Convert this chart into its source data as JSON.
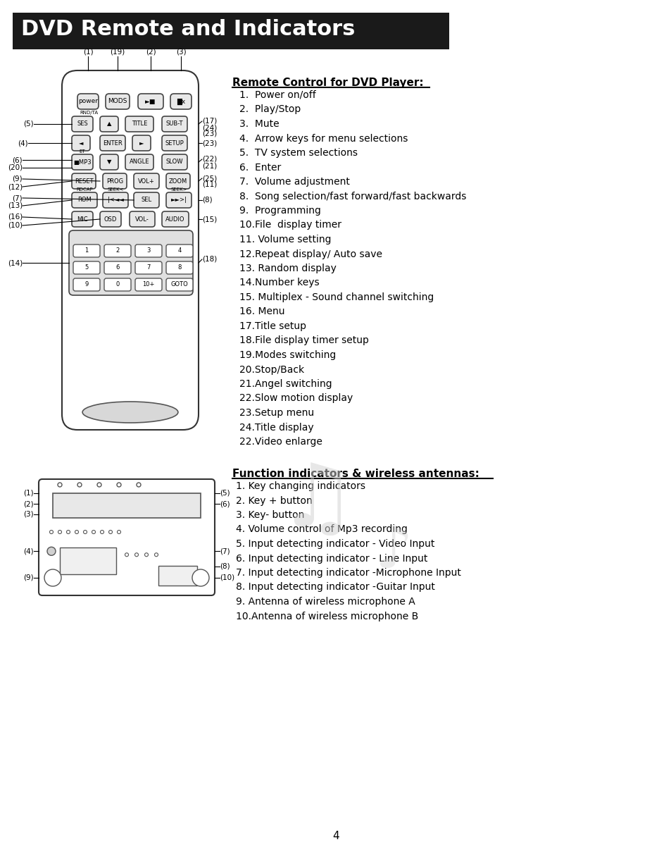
{
  "title": "DVD Remote and Indicators",
  "title_bg": "#1a1a1a",
  "title_color": "#ffffff",
  "title_fontsize": 22,
  "page_number": "4",
  "bg_color": "#ffffff",
  "remote_section_title": "Remote Control for DVD Player:",
  "remote_items": [
    "1.  Power on/off",
    "2.  Play/Stop",
    "3.  Mute",
    "4.  Arrow keys for menu selections",
    "5.  TV system selections",
    "6.  Enter",
    "7.  Volume adjustment",
    "8.  Song selection/fast forward/fast backwards",
    "9.  Programming",
    "10.File  display timer",
    "11. Volume setting",
    "12.Repeat display/ Auto save",
    "13. Random display",
    "14.Number keys",
    "15. Multiplex - Sound channel switching",
    "16. Menu",
    "17.Title setup",
    "18.File display timer setup",
    "19.Modes switching",
    "20.Stop/Back",
    "21.Angel switching",
    "22.Slow motion display",
    "23.Setup menu",
    "24.Title display",
    "22.Video enlarge"
  ],
  "indicator_section_title": "Function indicators & wireless antennas:",
  "indicator_items": [
    "1. Key changing indicators",
    "2. Key + button",
    "3. Key- button",
    "4. Volume control of Mp3 recording",
    "5. Input detecting indicator - Video Input",
    "6. Input detecting indicator - Line Input",
    "7. Input detecting indicator -Microphone Input",
    "8. Input detecting indicator -Guitar Input",
    "9. Antenna of wireless microphone A",
    "10.Antenna of wireless microphone B"
  ]
}
